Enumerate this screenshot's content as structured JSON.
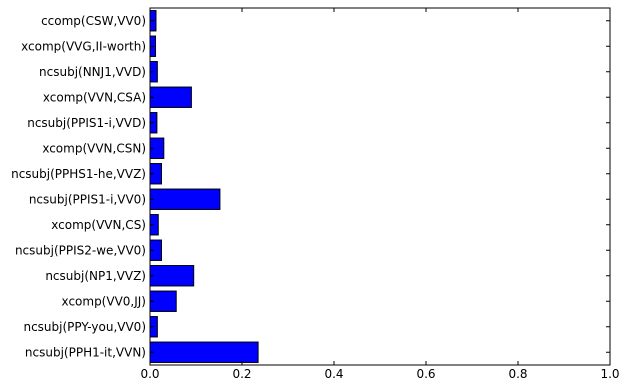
{
  "chart_data": {
    "type": "bar",
    "orientation": "horizontal",
    "categories": [
      "ccomp(CSW,VV0)",
      "xcomp(VVG,II-worth)",
      "ncsubj(NNJ1,VVD)",
      "xcomp(VVN,CSA)",
      "ncsubj(PPIS1-i,VVD)",
      "xcomp(VVN,CSN)",
      "ncsubj(PPHS1-he,VVZ)",
      "ncsubj(PPIS1-i,VV0)",
      "xcomp(VVN,CS)",
      "ncsubj(PPIS2-we,VV0)",
      "ncsubj(NP1,VVZ)",
      "xcomp(VV0,JJ)",
      "ncsubj(PPY-you,VV0)",
      "ncsubj(PPH1-it,VVN)"
    ],
    "values": [
      0.013,
      0.012,
      0.016,
      0.09,
      0.015,
      0.03,
      0.025,
      0.152,
      0.018,
      0.025,
      0.095,
      0.057,
      0.016,
      0.235
    ],
    "xticks": [
      "0.0",
      "0.2",
      "0.4",
      "0.6",
      "0.8",
      "1.0"
    ],
    "xlim": [
      0,
      1.0
    ],
    "bar_color": "#0000ff",
    "grid": false
  }
}
